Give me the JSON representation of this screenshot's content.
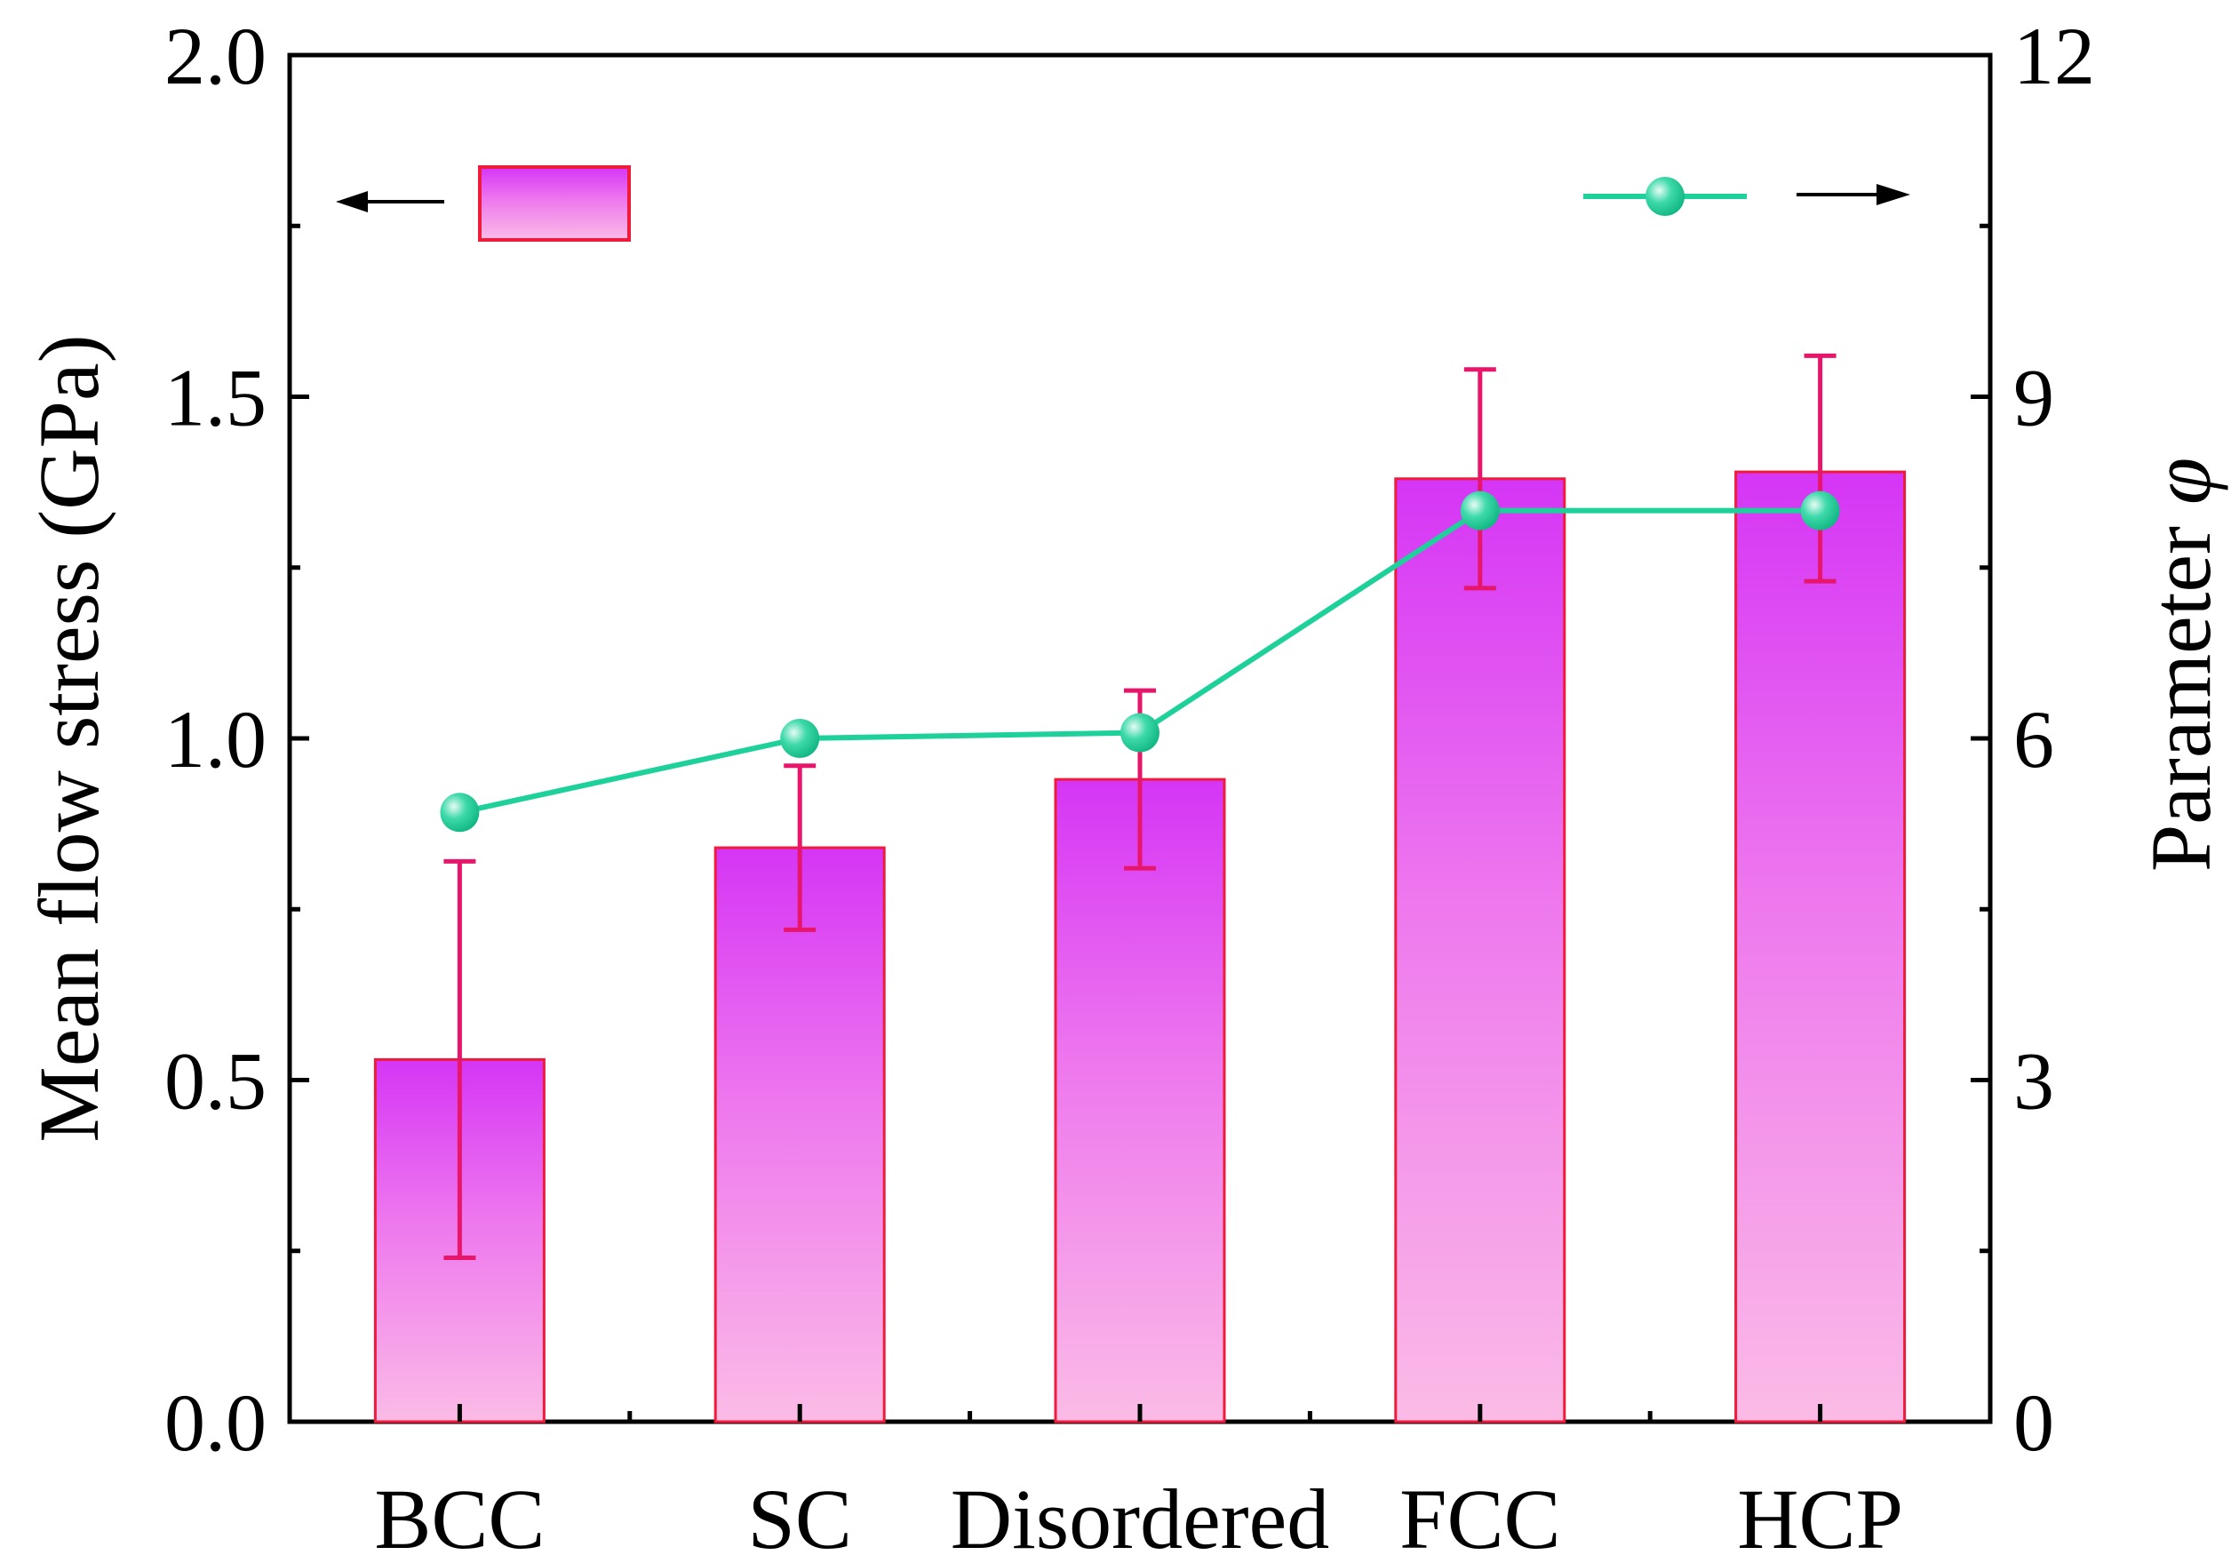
{
  "chart_data": {
    "type": "bar",
    "categories": [
      "BCC",
      "SC",
      "Disordered",
      "FCC",
      "HCP"
    ],
    "series": [
      {
        "name": "Mean flow stress",
        "axis": "left",
        "kind": "bar",
        "values": [
          0.53,
          0.84,
          0.94,
          1.38,
          1.39
        ],
        "error": [
          [
            0.24,
            0.82
          ],
          [
            0.72,
            0.96
          ],
          [
            0.81,
            1.07
          ],
          [
            1.22,
            1.54
          ],
          [
            1.23,
            1.56
          ]
        ]
      },
      {
        "name": "Parameter φ",
        "axis": "right",
        "kind": "line",
        "values": [
          5.35,
          6.0,
          6.05,
          8.0,
          8.0
        ]
      }
    ],
    "ylabel": "Mean flow stress (GPa)",
    "ylabel_right_text": "Parameter ",
    "ylabel_right_symbol": "φ",
    "ylim": [
      0,
      2.0
    ],
    "ylim_right": [
      0,
      12
    ],
    "yticks": [
      "0.0",
      "0.5",
      "1.0",
      "1.5",
      "2.0"
    ],
    "yticks_right": [
      "0",
      "3",
      "6",
      "9",
      "12"
    ],
    "legend": "arrows pointing to respective axes (bar→left, line→right)",
    "colors": {
      "bar_top": "#d535f5",
      "bar_mid": "#ee78ee",
      "bar_bottom": "#fbbbe6",
      "bar_edge": "#f01a3a",
      "error": "#e8166b",
      "line": "#1ed09a",
      "marker": "#14c990",
      "marker_highlight": "#c9f5e6"
    }
  }
}
